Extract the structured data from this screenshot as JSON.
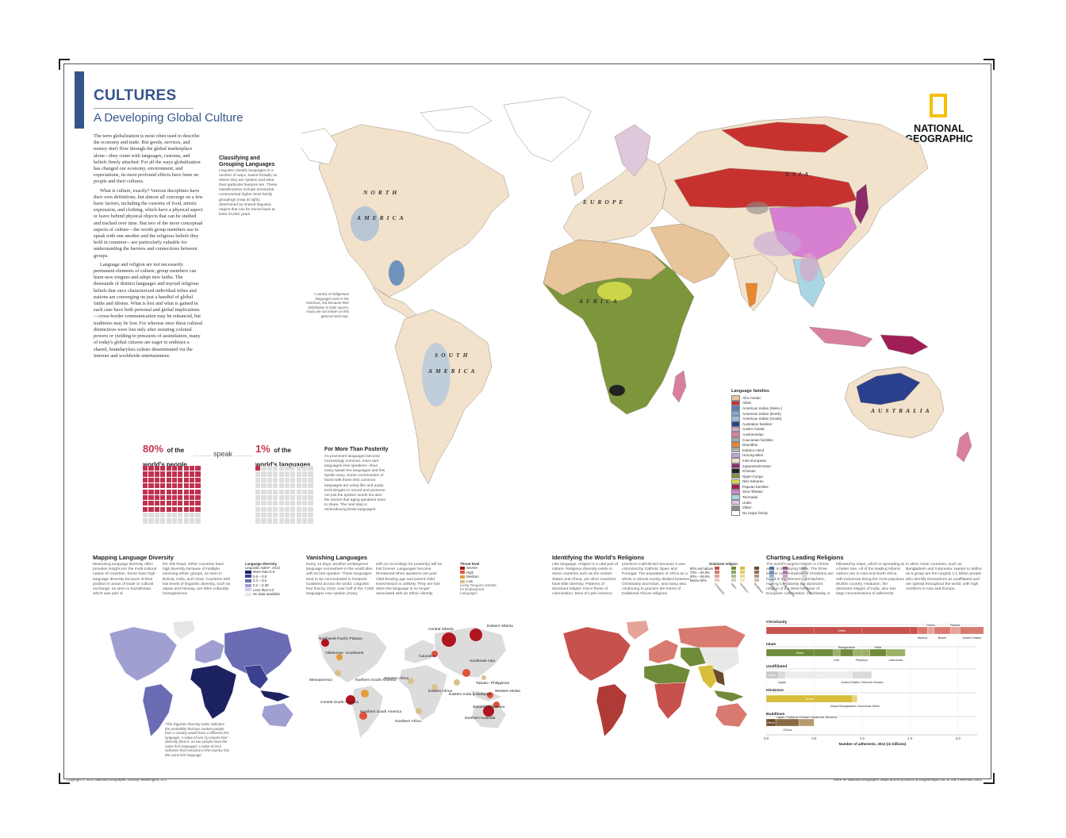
{
  "header": {
    "title": "CULTURES",
    "subtitle": "A Developing Global Culture"
  },
  "intro": {
    "p1": "The term globalization is most often used to describe the economy and trade. But goods, services, and money don't flow through the global marketplace alone—they come with languages, customs, and beliefs firmly attached. For all the ways globalization has changed our economy, environment, and expectations, its most profound effects have been on people and their cultures.",
    "p2": "What is culture, exactly? Various disciplines have their own definitions, but almost all converge on a few basic factors, including the customs of food, artistic expression, and clothing, which have a physical aspect or leave behind physical objects that can be studied and tracked over time. But two of the more conceptual aspects of culture—the words group members use to speak with one another and the religious beliefs they hold in common—are particularly valuable for understanding the barriers and connections between groups.",
    "p3": "Language and religion are not necessarily permanent elements of culture; group members can learn new tongues and adopt new faiths. The thousands of distinct languages and myriad religious beliefs that once characterized individual tribes and nations are converging on just a handful of global faiths and idioms. What is lost and what is gained in each case have both personal and global implications—cross-border communication may be enhanced, but traditions may be lost. For whereas once these cultural distinctives were lost only after resisting colonial powers or yielding to pressures of assimilation, many of today's global citizens are eager to embrace a shared, boundaryless culture disseminated via the Internet and worldwide entertainment."
  },
  "logo": {
    "line1": "NATIONAL",
    "line2": "GEOGRAPHIC"
  },
  "classifying": {
    "title": "Classifying and Grouping Languages",
    "text": "Linguists classify languages in a number of ways, based broadly on where they are spoken and what their particular features are. These classifications include somewhat controversial higher-level family groupings (map at right), determined by shared linguistic origins that can be traced back at least 10,000 years."
  },
  "map_labels": {
    "north_america": [
      "NORTH",
      "AMERICA"
    ],
    "south_america": [
      "SOUTH",
      "AMERICA"
    ],
    "europe": "EUROPE",
    "africa": "AFRICA",
    "asia": "ASIA",
    "australia": "AUSTRALIA"
  },
  "americas_note": "A variety of indigenous languages exist in the Americas, but because their distribution is fairly sparse, many are not shown on this general-ized map.",
  "legend": {
    "title": "Language families",
    "items": [
      {
        "label": "Afro-Asiatic",
        "color": "#e8c49a"
      },
      {
        "label": "Altaic",
        "color": "#c8322e"
      },
      {
        "label": "American Indian (Meso-)",
        "color": "#4f80b8"
      },
      {
        "label": "American Indian (North)",
        "color": "#7fa8d8"
      },
      {
        "label": "American Indian (South)",
        "color": "#9ec0e2"
      },
      {
        "label": "Australian families",
        "color": "#2a3f8e"
      },
      {
        "label": "Austro-Asiatic",
        "color": "#d9a7c7"
      },
      {
        "label": "Austronesian",
        "color": "#d87fa0"
      },
      {
        "label": "Caucasian families",
        "color": "#a6a6a6"
      },
      {
        "label": "Dravidian",
        "color": "#e8872e"
      },
      {
        "label": "Eskimo-Aleut",
        "color": "#b2b2b2"
      },
      {
        "label": "Hmong-Mien",
        "color": "#c7a4d6"
      },
      {
        "label": "Indo-European",
        "color": "#f2e2cc"
      },
      {
        "label": "Japanese/Korean",
        "color": "#8d2a6a"
      },
      {
        "label": "Khoisan",
        "color": "#222222"
      },
      {
        "label": "Niger-Congo",
        "color": "#7d963c"
      },
      {
        "label": "Nilo-Saharan",
        "color": "#d4dc4a"
      },
      {
        "label": "Papuan families",
        "color": "#a01e55"
      },
      {
        "label": "Sino-Tibetan",
        "color": "#d77fd0"
      },
      {
        "label": "Tai-Kadai",
        "color": "#a9d6e5"
      },
      {
        "label": "Uralic",
        "color": "#e0c8dc"
      },
      {
        "label": "Other",
        "color": "#8c8c8c"
      },
      {
        "label": "No major family",
        "color": "#ffffff"
      }
    ]
  },
  "stats": {
    "left_pct": "80%",
    "left_of": "of the",
    "left_label": "world's people",
    "connector": "speak",
    "right_pct": "1%",
    "right_of": "of the",
    "right_label": "world's languages",
    "left_fill": 0.8,
    "right_fill": 0.01
  },
  "posterity": {
    "title": "For More Than Posterity",
    "text": "As prominent languages become increasingly common, more rare languages lose speakers—thus many speak few languages and few speak many. Some communities of faced with these less common languages are using film and audio technologies to record and preserve not just the spoken words but also the stories that aging speakers have to share. The next step is reintroducing those languages."
  },
  "diversity": {
    "title": "Mapping Language Diversity",
    "text1": "Measuring language diversity often provides insight into the multi-cultural nature of countries. Some have high language diversity because of their position in areas of trade or cultural exchange, as seen in Kazakhstan, which was part of",
    "text2": "the Silk Road. Other countries have high diversity because of multiple surviving ethnic groups, as seen in Bolivia, India, and Chad. Countries with low levels of linguistic diversity, such as Japan and Norway, are often culturally homogeneous.",
    "legend_title": "Language diversity",
    "legend_sub": "Linguistic index*, 2013",
    "legend_items": [
      {
        "label": "More than 0.8",
        "color": "#1c2260"
      },
      {
        "label": "0.6 – 0.8",
        "color": "#3a3f8e"
      },
      {
        "label": "0.4 – 0.6",
        "color": "#6c6cb4"
      },
      {
        "label": "0.2 – 0.39",
        "color": "#9f9fd2"
      },
      {
        "label": "Less than 0.2",
        "color": "#cdcde8"
      },
      {
        "label": "No data available",
        "color": "#e6e6e6"
      }
    ],
    "footnote": "*The linguistic diversity index indicates the probability that two random people from a country would have a different first language. A value of one (1) equals total diversity (that is, no two people have the same first language); a value of zero indicates that everyone in the country has the same first language."
  },
  "vanishing": {
    "title": "Vanishing Languages",
    "text1": "Every 14 days, another endangered language somewhere in the world dies with its last speaker. These languages tend to be concentrated in hotspots scattered across the world. Linguists fear that by 2100, over half of the 7,000 languages now spoken (many",
    "text2": "with no recordings for posterity) will be lost forever. Languages become threatened when speakers are past child-bearing age and parent-child transmission is unlikely. They are lost when the language is no longer associated with an ethnic identity.",
    "legend_title": "Threat level",
    "legend_items": [
      {
        "label": "Severe",
        "color": "#b0141e"
      },
      {
        "label": "High",
        "color": "#e0523a"
      },
      {
        "label": "Medium",
        "color": "#e69b3a"
      },
      {
        "label": "Low",
        "color": "#dcc08a"
      }
    ],
    "legend_note": "Living Tongues Institute for Endangered Languages",
    "hotspots": [
      "Northwest Pacific Plateau",
      "Oklahoma– Southwest",
      "Mesoamerica",
      "Northern South America",
      "Central South America",
      "Southern South America",
      "Western Africa",
      "Eastern Africa",
      "Southern Africa",
      "Central Siberia",
      "Eastern Siberia",
      "Caucasus",
      "Southeast Asia",
      "Eastern India & Malaysia",
      "Taiwan– Philippines",
      "Western Melanesia",
      "Eastern Melanesia",
      "Northern Australia"
    ]
  },
  "religions": {
    "title": "Identifying the World's Religions",
    "text1": "Like language, religion is a vital part of culture. Religious diversity exists in some countries such as the United States and China, yet other countries have little diversity. Patterns of dominant religion mirror those of colonization. Most of Latin America",
    "text2": "practices Catholicism because it was colonized by Catholic Spain and Portugal. The population of Africa as a whole is almost evenly divided between Christianity and Islam, and many also continuing to practice ele-ments of traditional African religions.",
    "legend_title": "Dominant religion",
    "legend_rows": [
      "80% and above",
      "70% – 85.9%",
      "50% – 69.9%",
      "Below 50%"
    ],
    "legend_cols": [
      "Christianity",
      "Islam",
      "Hinduism",
      "Buddhism",
      "Judaism",
      "Folk religions",
      "Unaffiliated"
    ]
  },
  "charting": {
    "title": "Charting Leading Religions",
    "text1": "The world's largest religion is Christi-anity, in its varying forms. The three largest concentrations of Christians are found in the Western Hemisphere, making Christianity the dominant religion of the West because of European colonization. Christianity is",
    "text2": "followed by Islam, which is spreading at a faster rate. All of the leading Islamic nations are in Asia and North Africa, with Indonesia being the most populous Muslim country. Hinduism, the dominant religion of India, also has large concentrations of adherents",
    "text3": "in other Asian countries, such as Bangladesh and Indonesia. Harder to define as a group are the roughly 1.1 billion people who identify themselves as unaffiliated and are spread throughout the world, with high numbers in Asia and Europe."
  },
  "chart_data": {
    "type": "bar",
    "title": "",
    "xlabel": "Number of adherents, 2013 (in billions)",
    "ylabel": "",
    "xlim": [
      0,
      2.2
    ],
    "xticks": [
      "0.0",
      "0.5",
      "1.0",
      "1.5",
      "2.0"
    ],
    "series": [
      {
        "name": "Christianity",
        "total": 2.2,
        "segments": [
          {
            "label": "Other",
            "value": 1.58,
            "color": "#c7514d"
          },
          {
            "label": "Mexico",
            "value": 0.1,
            "color": "#d97a70"
          },
          {
            "label": "China",
            "value": 0.07,
            "color": "#e6a39a"
          },
          {
            "label": "Brazil",
            "value": 0.17,
            "color": "#d97a70"
          },
          {
            "label": "Russia",
            "value": 0.1,
            "color": "#e6a39a"
          },
          {
            "label": "United States",
            "value": 0.25,
            "color": "#d97a70"
          }
        ]
      },
      {
        "name": "Islam",
        "total": 1.45,
        "segments": [
          {
            "label": "Other",
            "value": 0.7,
            "color": "#6f8b3a"
          },
          {
            "label": "Iran",
            "value": 0.07,
            "color": "#9db068"
          },
          {
            "label": "Bangladesh",
            "value": 0.14,
            "color": "#6f8b3a"
          },
          {
            "label": "Pakistan",
            "value": 0.17,
            "color": "#9db068"
          },
          {
            "label": "India",
            "value": 0.17,
            "color": "#6f8b3a"
          },
          {
            "label": "Indonesia",
            "value": 0.2,
            "color": "#9db068"
          }
        ]
      },
      {
        "name": "Unaffiliated",
        "total": 1.1,
        "segments": [
          {
            "label": "Other",
            "value": 0.13,
            "color": "#c8c8c8"
          },
          {
            "label": "Japan",
            "value": 0.07,
            "color": "#dadada"
          },
          {
            "label": "China",
            "value": 0.7,
            "color": "#ececec"
          },
          {
            "label": "United States Vietnam Russia",
            "value": 0.2,
            "color": "#dadada"
          }
        ]
      },
      {
        "name": "Hinduism",
        "total": 0.95,
        "segments": [
          {
            "label": "India",
            "value": 0.9,
            "color": "#d8be3a"
          },
          {
            "label": "Nepal Bangladesh Indonesia Other",
            "value": 0.05,
            "color": "#e8d67a"
          }
        ]
      },
      {
        "name": "Buddhism",
        "total": 0.5,
        "segments": [
          {
            "label": "Other",
            "value": 0.1,
            "color": "#6b4a2a"
          },
          {
            "label": "China",
            "value": 0.24,
            "color": "#8a6a44"
          },
          {
            "label": "Japan Thailand Vietnam Myanmar (Burma)",
            "value": 0.16,
            "color": "#b59a70"
          }
        ]
      }
    ]
  },
  "footer": {
    "left": "Copyright © 2014 National Geographic Society, Washington, D.C.",
    "right": "More on National Geographic Maps and its products at natgeomaps.com or call 1-800-962-1643"
  }
}
